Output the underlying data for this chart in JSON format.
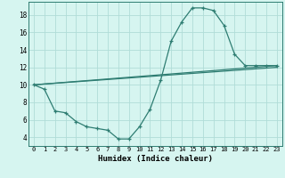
{
  "xlabel": "Humidex (Indice chaleur)",
  "background_color": "#d6f5f0",
  "grid_color": "#b0ddd8",
  "line_color": "#2e7d72",
  "xlim": [
    -0.5,
    23.5
  ],
  "ylim": [
    3,
    19.5
  ],
  "yticks": [
    4,
    6,
    8,
    10,
    12,
    14,
    16,
    18
  ],
  "xticks": [
    0,
    1,
    2,
    3,
    4,
    5,
    6,
    7,
    8,
    9,
    10,
    11,
    12,
    13,
    14,
    15,
    16,
    17,
    18,
    19,
    20,
    21,
    22,
    23
  ],
  "series_main": {
    "x": [
      0,
      1,
      2,
      3,
      4,
      5,
      6,
      7,
      8,
      9,
      10,
      11,
      12,
      13,
      14,
      15,
      16,
      17,
      18,
      19,
      20,
      21,
      22,
      23
    ],
    "y": [
      10,
      9.5,
      7,
      6.8,
      5.8,
      5.2,
      5.0,
      4.8,
      3.8,
      3.8,
      5.2,
      7.2,
      10.5,
      15.0,
      17.2,
      18.8,
      18.8,
      18.5,
      16.8,
      13.5,
      12.2,
      12.2,
      12.2,
      12.2
    ]
  },
  "series_line1": {
    "x": [
      0,
      23
    ],
    "y": [
      10,
      12.2
    ]
  },
  "series_line2": {
    "x": [
      0,
      23
    ],
    "y": [
      10,
      12.0
    ]
  }
}
